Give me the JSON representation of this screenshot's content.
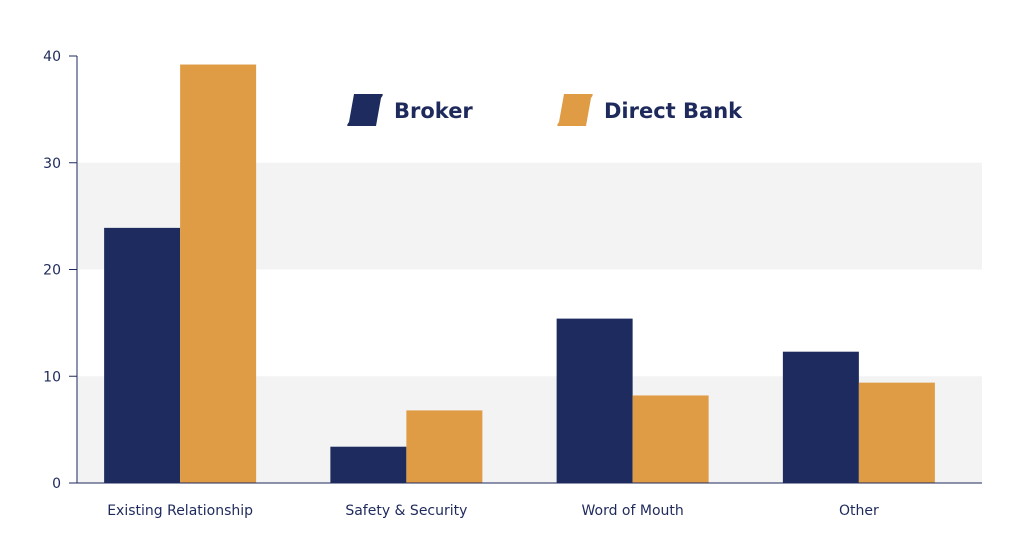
{
  "chart_data": {
    "type": "bar",
    "title": "",
    "xlabel": "",
    "ylabel": "",
    "categories": [
      "Existing Relationship",
      "Safety & Security",
      "Word of Mouth",
      "Other"
    ],
    "series": [
      {
        "name": "Broker",
        "values": [
          23.9,
          3.4,
          15.4,
          12.3
        ],
        "color": "#1e2b5e"
      },
      {
        "name": "Direct Bank",
        "values": [
          39.2,
          6.8,
          8.2,
          9.4
        ],
        "color": "#e09b45"
      }
    ],
    "ylim": [
      0,
      40
    ],
    "yticks": [
      0,
      10,
      20,
      30,
      40
    ],
    "grid": "alternating horizontal bands",
    "band_color": "#f3f3f4",
    "axis_color": "#1f2a5c",
    "legend_position": "top-center"
  }
}
